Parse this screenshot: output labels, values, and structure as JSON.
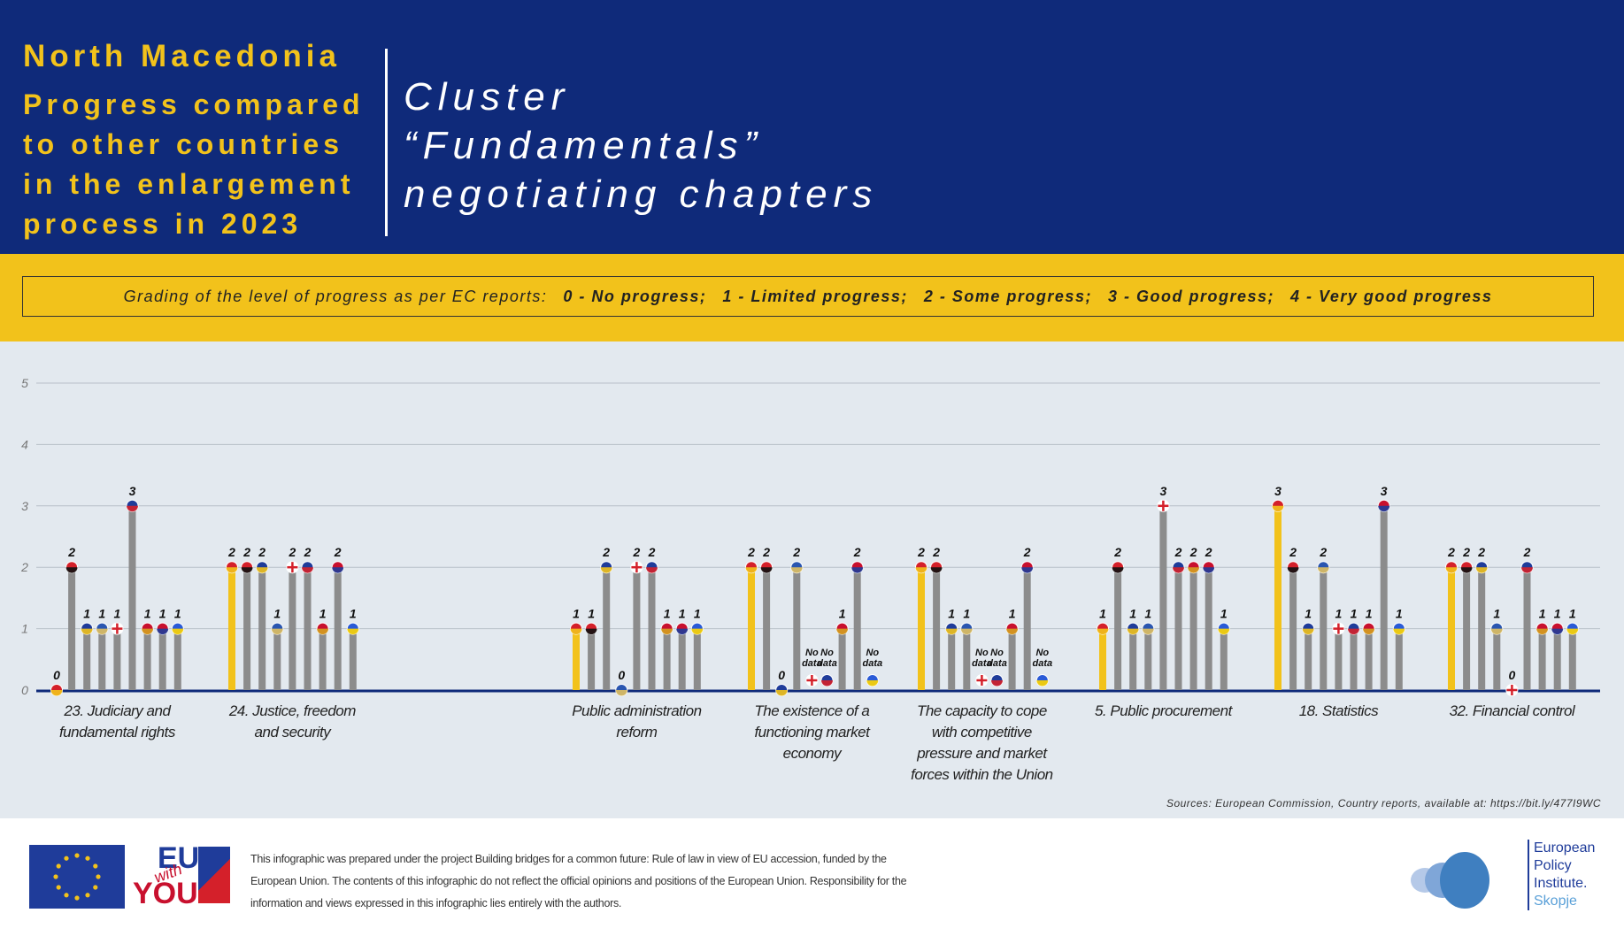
{
  "header": {
    "country": "North Macedonia",
    "subtitle_lines": [
      "Progress compared",
      "to other countries",
      "in the enlargement",
      "process in 2023"
    ],
    "title_lines": [
      "Cluster",
      "“Fundamentals”",
      "negotiating chapters"
    ]
  },
  "legend": {
    "intro": "Grading of the level of progress as per EC reports:",
    "grades": [
      "0 - No progress;",
      "1 - Limited progress;",
      "2 - Some progress;",
      "3 - Good progress;",
      "4 - Very good progress"
    ]
  },
  "chart_data": {
    "type": "grouped-bar",
    "ylim": [
      0,
      5
    ],
    "yticks": [
      0,
      1,
      2,
      3,
      4,
      5
    ],
    "grid": true,
    "no_data_label": "No data",
    "bar_colors": [
      "#f2c21b",
      "#8c8c8c",
      "#8c8c8c",
      "#8c8c8c",
      "#8c8c8c",
      "#8c8c8c",
      "#8c8c8c",
      "#8c8c8c",
      "#8c8c8c"
    ],
    "groups": [
      {
        "category": "23. Judiciary and fundamental rights",
        "values": [
          0,
          2,
          1,
          1,
          1,
          3,
          1,
          1,
          1
        ]
      },
      {
        "category": "24. Justice, freedom and security",
        "values": [
          2,
          2,
          2,
          1,
          2,
          2,
          1,
          2,
          1
        ]
      },
      {
        "category": "Public administration reform",
        "values": [
          1,
          1,
          2,
          0,
          2,
          2,
          1,
          1,
          1
        ]
      },
      {
        "category": "The existence of a functioning market economy",
        "values": [
          2,
          2,
          0,
          2,
          null,
          null,
          1,
          2,
          null
        ]
      },
      {
        "category": "The capacity to cope with competitive pressure and market forces within the Union",
        "values": [
          2,
          2,
          1,
          1,
          null,
          null,
          1,
          2,
          null
        ]
      },
      {
        "category": "5. Public procurement",
        "values": [
          1,
          2,
          1,
          1,
          3,
          2,
          2,
          2,
          1
        ]
      },
      {
        "category": "18. Statistics",
        "values": [
          3,
          2,
          1,
          2,
          1,
          1,
          1,
          3,
          1
        ]
      },
      {
        "category": "32. Financial control",
        "values": [
          2,
          2,
          2,
          1,
          0,
          2,
          1,
          1,
          1
        ]
      }
    ]
  },
  "source": "Sources: European Commission, Country reports, available at: https://bit.ly/477I9WC",
  "footer": {
    "disclaimer_lines": [
      "This infographic was prepared under the project Building bridges for a common future: Rule of law in view of EU accession, funded by the",
      "European Union. The contents of this infographic do not reflect the official opinions and positions of the European Union. Responsibility for the",
      "information and views expressed in this infographic lies entirely with the authors."
    ],
    "eu_logo": [
      "EU",
      "with",
      "YOU"
    ],
    "epi_logo": [
      "European",
      "Policy",
      "Institute.",
      "Skopje"
    ]
  }
}
